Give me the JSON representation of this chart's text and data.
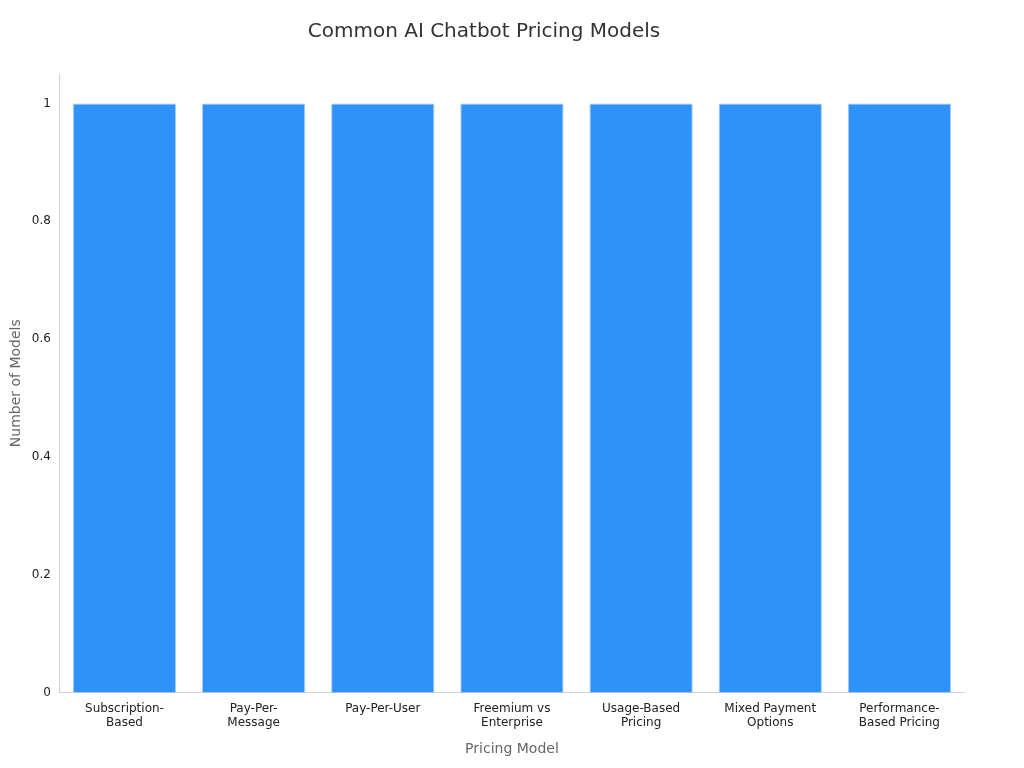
{
  "chart_data": {
    "type": "bar",
    "title": "Common AI Chatbot Pricing Models",
    "xlabel": "Pricing Model",
    "ylabel": "Number of Models",
    "categories": [
      "Subscription-Based",
      "Pay-Per-Message",
      "Pay-Per-User",
      "Freemium vs Enterprise",
      "Usage-Based Pricing",
      "Mixed Payment Options",
      "Performance-Based Pricing"
    ],
    "values": [
      1,
      1,
      1,
      1,
      1,
      1,
      1
    ],
    "color": "#2f91fa",
    "ylim": [
      0,
      1.05
    ],
    "yticks": [
      0,
      0.2,
      0.4,
      0.6,
      0.8,
      1
    ],
    "grid": false,
    "legend": false
  }
}
